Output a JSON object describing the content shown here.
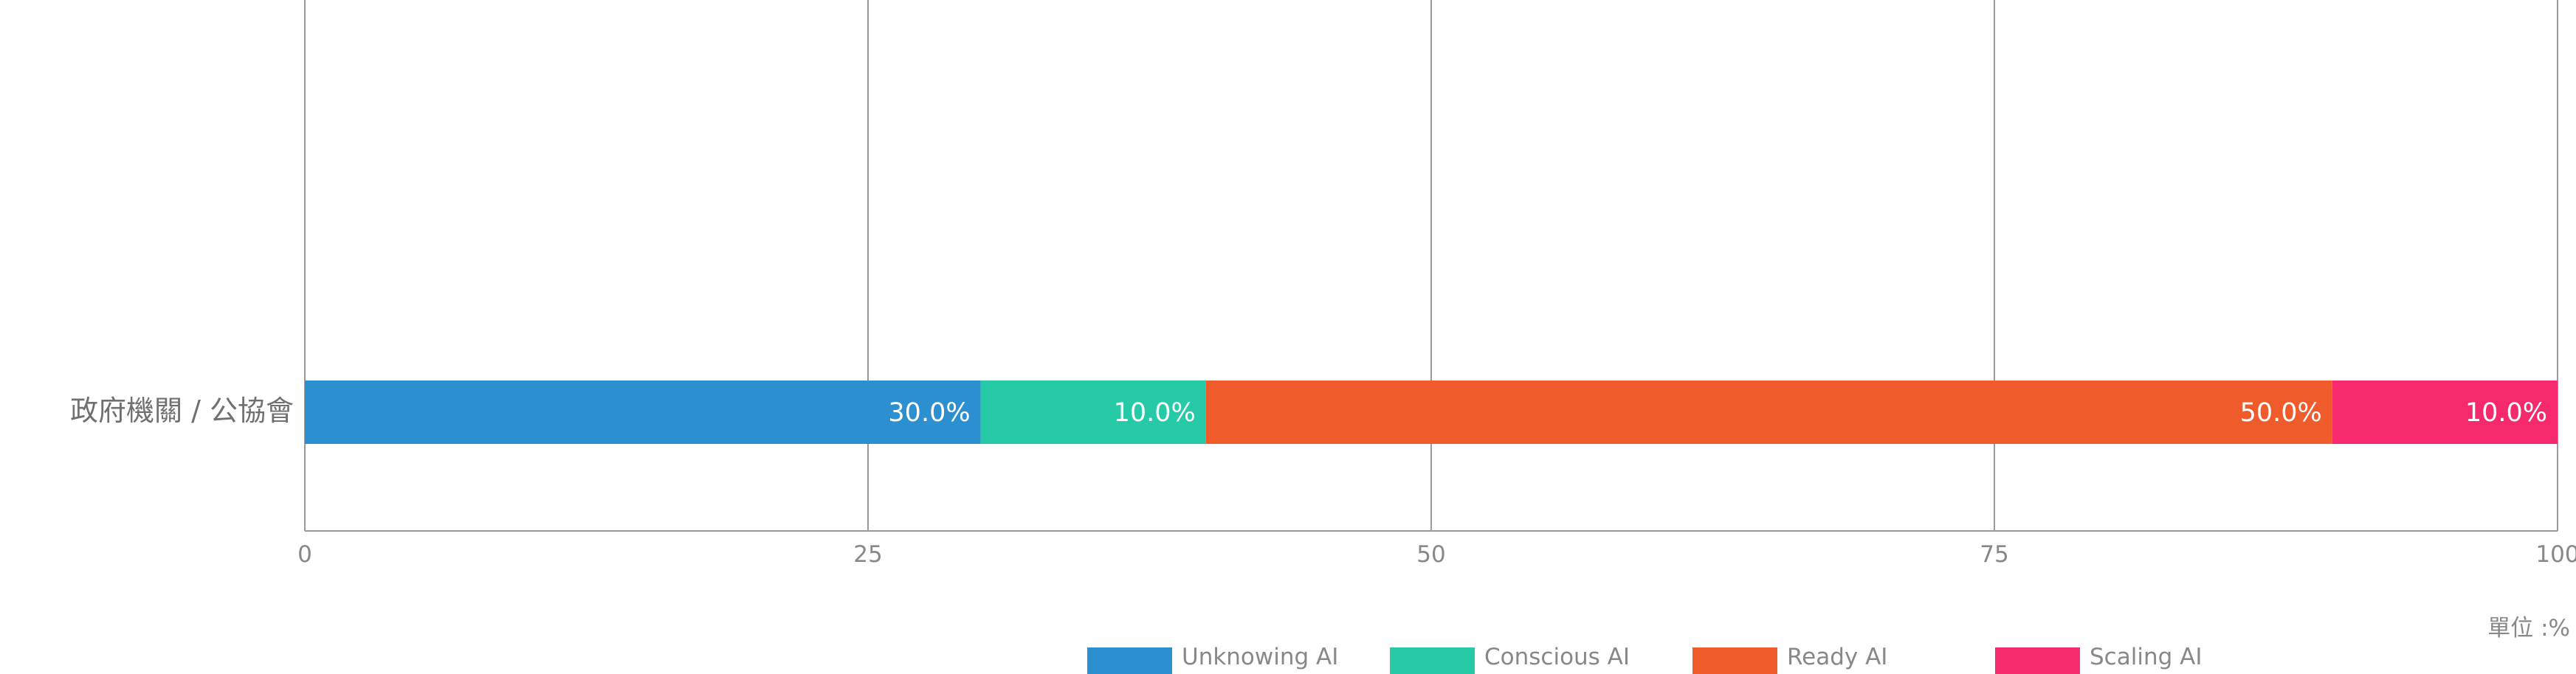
{
  "chart_data": {
    "type": "bar",
    "orientation": "horizontal",
    "stacked": true,
    "categories": [
      "政府機關 / 公協會"
    ],
    "series": [
      {
        "name": "Unknowing AI",
        "values": [
          30.0
        ],
        "label": "30.0%",
        "color": "#2B8FD0"
      },
      {
        "name": "Conscious AI",
        "values": [
          10.0
        ],
        "label": "10.0%",
        "color": "#27CAA6"
      },
      {
        "name": "Ready AI",
        "values": [
          50.0
        ],
        "label": "50.0%",
        "color": "#EF5B2B"
      },
      {
        "name": "Scaling AI",
        "values": [
          10.0
        ],
        "label": "10.0%",
        "color": "#F5296B"
      }
    ],
    "x_ticks": [
      "0",
      "25",
      "50",
      "75",
      "100"
    ],
    "unit_label": "單位 :%",
    "grid": true,
    "legend_position": "bottom-center"
  }
}
